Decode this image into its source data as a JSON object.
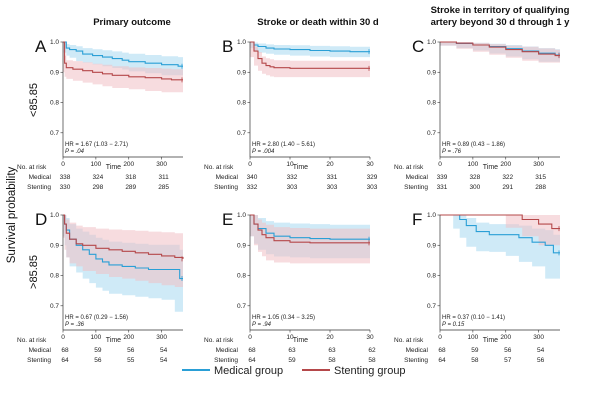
{
  "figure": {
    "y_axis_label": "Survival probability",
    "row_labels": [
      "<85.85",
      ">85.85"
    ],
    "column_titles": [
      [
        "Primary outcome"
      ],
      [
        "Stroke or death within 30 d"
      ],
      [
        "Stroke in territory of qualifying",
        "artery beyond 30 d through 1 y"
      ]
    ],
    "legend": [
      {
        "label": "Medical group",
        "color": "#2a9fd6"
      },
      {
        "label": "Stenting group",
        "color": "#b5484a"
      }
    ],
    "risk_header": "No. at risk",
    "risk_rows": [
      "Medical",
      "Stenting"
    ],
    "x_title": "Time"
  },
  "chart_data": [
    {
      "type": "line",
      "panel": "A",
      "row": 0,
      "col": 0,
      "xlim": [
        0,
        365
      ],
      "ylim": [
        0.62,
        1.0
      ],
      "yticks": [
        0.7,
        0.8,
        0.9,
        1.0
      ],
      "ytick_labels": [
        "0.7",
        "0.8",
        "0.9",
        "1.0"
      ],
      "xticks": [
        0,
        100,
        200,
        300
      ],
      "xtick_labels": [
        "0",
        "100",
        "200",
        "300"
      ],
      "series": [
        {
          "name": "Medical group",
          "color": "#2a9fd6",
          "band": "#a8d8f0",
          "x": [
            0,
            10,
            20,
            40,
            60,
            90,
            120,
            150,
            180,
            200,
            250,
            300,
            350,
            365
          ],
          "y": [
            1.0,
            0.98,
            0.975,
            0.97,
            0.96,
            0.955,
            0.95,
            0.945,
            0.94,
            0.935,
            0.93,
            0.925,
            0.92,
            0.92
          ],
          "lo": [
            1.0,
            0.965,
            0.955,
            0.948,
            0.937,
            0.932,
            0.926,
            0.92,
            0.914,
            0.909,
            0.903,
            0.897,
            0.89,
            0.89
          ],
          "hi": [
            1.0,
            0.993,
            0.99,
            0.986,
            0.98,
            0.976,
            0.973,
            0.969,
            0.965,
            0.961,
            0.957,
            0.953,
            0.95,
            0.95
          ]
        },
        {
          "name": "Stenting group",
          "color": "#b5484a",
          "band": "#f0c0c4",
          "x": [
            0,
            5,
            10,
            30,
            60,
            90,
            120,
            150,
            200,
            250,
            300,
            330,
            365
          ],
          "y": [
            1.0,
            0.93,
            0.915,
            0.91,
            0.905,
            0.9,
            0.895,
            0.89,
            0.885,
            0.882,
            0.878,
            0.875,
            0.875
          ],
          "lo": [
            1.0,
            0.9,
            0.885,
            0.878,
            0.872,
            0.866,
            0.86,
            0.854,
            0.848,
            0.844,
            0.838,
            0.834,
            0.834
          ],
          "hi": [
            1.0,
            0.955,
            0.94,
            0.937,
            0.933,
            0.928,
            0.925,
            0.92,
            0.916,
            0.914,
            0.912,
            0.91,
            0.91
          ]
        }
      ],
      "hr_text": "HR = 1.67 (1.03 − 2.71)",
      "p_text": "P = .04",
      "risk_x": [
        0,
        100,
        200,
        300,
        365
      ],
      "risk": {
        "Medical": [
          "338",
          "324",
          "318",
          "311"
        ],
        "Stenting": [
          "330",
          "298",
          "289",
          "285"
        ]
      }
    },
    {
      "type": "line",
      "panel": "B",
      "row": 0,
      "col": 1,
      "xlim": [
        0,
        30
      ],
      "ylim": [
        0.62,
        1.0
      ],
      "yticks": [
        0.7,
        0.8,
        0.9,
        1.0
      ],
      "ytick_labels": [
        "0.7",
        "0.8",
        "0.9",
        "1.0"
      ],
      "xticks": [
        0,
        10,
        20,
        30
      ],
      "xtick_labels": [
        "0",
        "10",
        "20",
        "30"
      ],
      "series": [
        {
          "name": "Medical group",
          "color": "#2a9fd6",
          "band": "#a8d8f0",
          "x": [
            0,
            1,
            2,
            4,
            6,
            10,
            15,
            20,
            25,
            30
          ],
          "y": [
            1.0,
            0.99,
            0.985,
            0.98,
            0.977,
            0.975,
            0.972,
            0.97,
            0.968,
            0.968
          ],
          "lo": [
            1.0,
            0.98,
            0.972,
            0.965,
            0.961,
            0.958,
            0.955,
            0.952,
            0.95,
            0.95
          ],
          "hi": [
            1.0,
            0.998,
            0.995,
            0.992,
            0.99,
            0.989,
            0.987,
            0.986,
            0.984,
            0.984
          ]
        },
        {
          "name": "Stenting group",
          "color": "#b5484a",
          "band": "#f0c0c4",
          "x": [
            0,
            1,
            2,
            3,
            4,
            5,
            6,
            10,
            20,
            30
          ],
          "y": [
            1.0,
            0.97,
            0.945,
            0.93,
            0.922,
            0.918,
            0.915,
            0.913,
            0.913,
            0.913
          ],
          "lo": [
            1.0,
            0.95,
            0.922,
            0.905,
            0.895,
            0.89,
            0.886,
            0.884,
            0.884,
            0.884
          ],
          "hi": [
            1.0,
            0.985,
            0.967,
            0.952,
            0.946,
            0.943,
            0.94,
            0.938,
            0.938,
            0.938
          ]
        }
      ],
      "hr_text": "HR = 2.80 (1.40 − 5.61)",
      "p_text": "P = .004",
      "risk_x": [
        0,
        10,
        20,
        30,
        30
      ],
      "risk": {
        "Medical": [
          "340",
          "332",
          "331",
          "329"
        ],
        "Stenting": [
          "332",
          "303",
          "303",
          "303"
        ]
      }
    },
    {
      "type": "line",
      "panel": "C",
      "row": 0,
      "col": 2,
      "xlim": [
        0,
        365
      ],
      "ylim": [
        0.62,
        1.0
      ],
      "yticks": [
        0.7,
        0.8,
        0.9,
        1.0
      ],
      "ytick_labels": [
        "0.7",
        "0.8",
        "0.9",
        "1.0"
      ],
      "xticks": [
        0,
        100,
        200,
        300
      ],
      "xtick_labels": [
        "0",
        "100",
        "200",
        "300"
      ],
      "series": [
        {
          "name": "Medical group",
          "color": "#2a9fd6",
          "band": "#a8d8f0",
          "x": [
            0,
            50,
            100,
            150,
            200,
            250,
            300,
            350,
            365
          ],
          "y": [
            1.0,
            0.995,
            0.99,
            0.985,
            0.978,
            0.97,
            0.963,
            0.957,
            0.957
          ],
          "lo": [
            1.0,
            0.988,
            0.98,
            0.972,
            0.962,
            0.952,
            0.943,
            0.935,
            0.935
          ],
          "hi": [
            1.0,
            1.0,
            0.997,
            0.994,
            0.99,
            0.985,
            0.98,
            0.976,
            0.976
          ]
        },
        {
          "name": "Stenting group",
          "color": "#b5484a",
          "band": "#f0c0c4",
          "x": [
            0,
            50,
            100,
            150,
            200,
            250,
            300,
            350,
            365
          ],
          "y": [
            1.0,
            0.996,
            0.99,
            0.983,
            0.975,
            0.968,
            0.96,
            0.955,
            0.955
          ],
          "lo": [
            1.0,
            0.988,
            0.978,
            0.968,
            0.958,
            0.948,
            0.938,
            0.932,
            0.932
          ],
          "hi": [
            1.0,
            1.0,
            0.997,
            0.993,
            0.988,
            0.984,
            0.979,
            0.975,
            0.975
          ]
        }
      ],
      "hr_text": "HR = 0.89 (0.43 − 1.86)",
      "p_text": "P = .76",
      "risk_x": [
        0,
        100,
        200,
        300,
        365
      ],
      "risk": {
        "Medical": [
          "339",
          "328",
          "322",
          "315"
        ],
        "Stenting": [
          "331",
          "300",
          "291",
          "288"
        ]
      }
    },
    {
      "type": "line",
      "panel": "D",
      "row": 1,
      "col": 0,
      "xlim": [
        0,
        365
      ],
      "ylim": [
        0.62,
        1.0
      ],
      "yticks": [
        0.7,
        0.8,
        0.9,
        1.0
      ],
      "ytick_labels": [
        "0.7",
        "0.8",
        "0.9",
        "1.0"
      ],
      "xticks": [
        0,
        100,
        200,
        300
      ],
      "xtick_labels": [
        "0",
        "100",
        "200",
        "300"
      ],
      "series": [
        {
          "name": "Medical group",
          "color": "#2a9fd6",
          "band": "#a8d8f0",
          "x": [
            0,
            5,
            10,
            20,
            40,
            60,
            80,
            100,
            120,
            140,
            180,
            220,
            260,
            300,
            340,
            355,
            365
          ],
          "y": [
            1.0,
            0.97,
            0.95,
            0.92,
            0.9,
            0.885,
            0.87,
            0.855,
            0.845,
            0.835,
            0.83,
            0.825,
            0.82,
            0.82,
            0.82,
            0.79,
            0.79
          ],
          "lo": [
            1.0,
            0.93,
            0.9,
            0.86,
            0.83,
            0.81,
            0.79,
            0.775,
            0.76,
            0.75,
            0.74,
            0.735,
            0.73,
            0.725,
            0.72,
            0.68,
            0.68
          ],
          "hi": [
            1.0,
            1.0,
            0.99,
            0.97,
            0.955,
            0.945,
            0.935,
            0.925,
            0.918,
            0.912,
            0.908,
            0.905,
            0.902,
            0.902,
            0.902,
            0.885,
            0.885
          ]
        },
        {
          "name": "Stenting group",
          "color": "#b5484a",
          "band": "#f0c0c4",
          "x": [
            0,
            5,
            10,
            20,
            40,
            60,
            100,
            140,
            180,
            220,
            260,
            300,
            340,
            365
          ],
          "y": [
            1.0,
            0.97,
            0.94,
            0.92,
            0.905,
            0.9,
            0.89,
            0.885,
            0.88,
            0.875,
            0.87,
            0.865,
            0.86,
            0.855
          ],
          "lo": [
            1.0,
            0.925,
            0.885,
            0.86,
            0.84,
            0.83,
            0.815,
            0.805,
            0.795,
            0.79,
            0.783,
            0.775,
            0.768,
            0.762
          ],
          "hi": [
            1.0,
            1.0,
            0.985,
            0.975,
            0.965,
            0.96,
            0.955,
            0.952,
            0.95,
            0.948,
            0.945,
            0.943,
            0.94,
            0.938
          ]
        }
      ],
      "hr_text": "HR = 0.67 (0.29 − 1.56)",
      "p_text": "P = .36",
      "risk_x": [
        0,
        100,
        200,
        300,
        365
      ],
      "risk": {
        "Medical": [
          "68",
          "59",
          "56",
          "54"
        ],
        "Stenting": [
          "64",
          "56",
          "55",
          "54"
        ]
      }
    },
    {
      "type": "line",
      "panel": "E",
      "row": 1,
      "col": 1,
      "xlim": [
        0,
        30
      ],
      "ylim": [
        0.62,
        1.0
      ],
      "yticks": [
        0.7,
        0.8,
        0.9,
        1.0
      ],
      "ytick_labels": [
        "0.7",
        "0.8",
        "0.9",
        "1.0"
      ],
      "xticks": [
        0,
        10,
        20,
        30
      ],
      "xtick_labels": [
        "0",
        "10",
        "20",
        "30"
      ],
      "series": [
        {
          "name": "Medical group",
          "color": "#2a9fd6",
          "band": "#a8d8f0",
          "x": [
            0,
            1,
            2,
            4,
            6,
            10,
            15,
            20,
            25,
            30
          ],
          "y": [
            1.0,
            0.97,
            0.955,
            0.94,
            0.93,
            0.925,
            0.922,
            0.92,
            0.92,
            0.92
          ],
          "lo": [
            1.0,
            0.93,
            0.905,
            0.885,
            0.87,
            0.863,
            0.86,
            0.857,
            0.857,
            0.857
          ],
          "hi": [
            1.0,
            1.0,
            0.99,
            0.98,
            0.975,
            0.972,
            0.97,
            0.968,
            0.968,
            0.968
          ]
        },
        {
          "name": "Stenting group",
          "color": "#b5484a",
          "band": "#f0c0c4",
          "x": [
            0,
            1,
            2,
            3,
            4,
            6,
            10,
            15,
            20,
            25,
            30
          ],
          "y": [
            1.0,
            0.97,
            0.95,
            0.935,
            0.925,
            0.915,
            0.91,
            0.908,
            0.908,
            0.908,
            0.908
          ],
          "lo": [
            1.0,
            0.93,
            0.9,
            0.878,
            0.864,
            0.85,
            0.843,
            0.84,
            0.84,
            0.84,
            0.84
          ],
          "hi": [
            1.0,
            1.0,
            0.985,
            0.975,
            0.968,
            0.96,
            0.957,
            0.955,
            0.955,
            0.955,
            0.955
          ]
        }
      ],
      "hr_text": "HR = 1.05 (0.34 − 3.25)",
      "p_text": "P = .94",
      "risk_x": [
        0,
        10,
        20,
        30,
        30
      ],
      "risk": {
        "Medical": [
          "68",
          "63",
          "63",
          "62"
        ],
        "Stenting": [
          "64",
          "59",
          "58",
          "58"
        ]
      }
    },
    {
      "type": "line",
      "panel": "F",
      "row": 1,
      "col": 2,
      "xlim": [
        0,
        365
      ],
      "ylim": [
        0.62,
        1.0
      ],
      "yticks": [
        0.7,
        0.8,
        0.9,
        1.0
      ],
      "ytick_labels": [
        "0.7",
        "0.8",
        "0.9",
        "1.0"
      ],
      "xticks": [
        0,
        100,
        200,
        300
      ],
      "xtick_labels": [
        "0",
        "100",
        "200",
        "300"
      ],
      "series": [
        {
          "name": "Medical group",
          "color": "#2a9fd6",
          "band": "#a8d8f0",
          "x": [
            0,
            40,
            60,
            80,
            110,
            150,
            200,
            240,
            280,
            320,
            345,
            365
          ],
          "y": [
            1.0,
            1.0,
            0.985,
            0.965,
            0.945,
            0.935,
            0.935,
            0.925,
            0.91,
            0.9,
            0.875,
            0.875
          ],
          "lo": [
            1.0,
            1.0,
            0.955,
            0.925,
            0.895,
            0.88,
            0.878,
            0.865,
            0.845,
            0.83,
            0.79,
            0.79
          ],
          "hi": [
            1.0,
            1.0,
            1.0,
            0.99,
            0.975,
            0.97,
            0.97,
            0.965,
            0.955,
            0.95,
            0.935,
            0.935
          ]
        },
        {
          "name": "Stenting group",
          "color": "#b5484a",
          "band": "#f0c0c4",
          "x": [
            0,
            100,
            200,
            250,
            300,
            340,
            365
          ],
          "y": [
            1.0,
            1.0,
            1.0,
            0.985,
            0.97,
            0.955,
            0.955
          ],
          "lo": [
            1.0,
            1.0,
            1.0,
            0.958,
            0.93,
            0.9,
            0.9
          ],
          "hi": [
            1.0,
            1.0,
            1.0,
            1.0,
            1.0,
            1.0,
            1.0
          ]
        }
      ],
      "hr_text": "HR = 0.37 (0.10 − 1.41)",
      "p_text": "P = 0.15",
      "risk_x": [
        0,
        100,
        200,
        300,
        365
      ],
      "risk": {
        "Medical": [
          "68",
          "59",
          "56",
          "54"
        ],
        "Stenting": [
          "64",
          "58",
          "57",
          "56"
        ]
      }
    }
  ]
}
